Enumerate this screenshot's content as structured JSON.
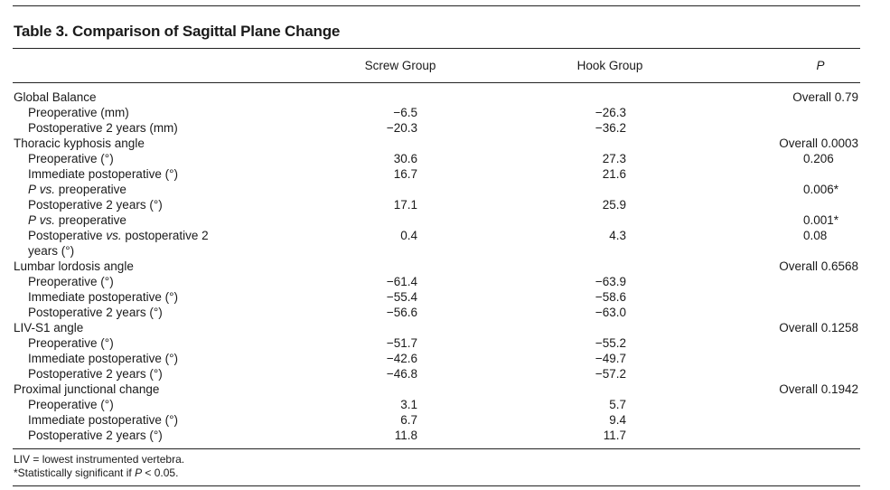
{
  "table": {
    "title": "Table 3.  Comparison of Sagittal Plane Change",
    "headers": {
      "screw": "Screw Group",
      "hook": "Hook Group",
      "p": "P"
    },
    "rows": [
      {
        "label": "Global Balance",
        "screw": "",
        "hook": "",
        "p": "Overall 0.79",
        "indent": false
      },
      {
        "label": "Preoperative (mm)",
        "screw": "−6.5",
        "hook": "−26.3",
        "p": "",
        "indent": true
      },
      {
        "label": "Postoperative 2 years (mm)",
        "screw": "−20.3",
        "hook": "−36.2",
        "p": "",
        "indent": true
      },
      {
        "label": "Thoracic kyphosis angle",
        "screw": "",
        "hook": "",
        "p": "Overall 0.0003",
        "indent": false
      },
      {
        "label": "Preoperative (°)",
        "screw": "30.6",
        "hook": "27.3",
        "p": "0.206",
        "indent": true
      },
      {
        "label": "Immediate postoperative (°)",
        "screw": "16.7",
        "hook": "21.6",
        "p": "",
        "indent": true
      },
      {
        "label": "P vs. preoperative",
        "screw": "",
        "hook": "",
        "p": "0.006*",
        "indent": true
      },
      {
        "label": "Postoperative 2 years (°)",
        "screw": "17.1",
        "hook": "25.9",
        "p": "",
        "indent": true
      },
      {
        "label": "P vs. preoperative",
        "screw": "",
        "hook": "",
        "p": "0.001*",
        "indent": true
      },
      {
        "label": "Postoperative vs. postoperative 2 years (°)",
        "screw": "0.4",
        "hook": "4.3",
        "p": "0.08",
        "indent": true,
        "wrap": true
      },
      {
        "label": "Lumbar lordosis angle",
        "screw": "",
        "hook": "",
        "p": "Overall 0.6568",
        "indent": false
      },
      {
        "label": "Preoperative (°)",
        "screw": "−61.4",
        "hook": "−63.9",
        "p": "",
        "indent": true
      },
      {
        "label": "Immediate postoperative (°)",
        "screw": "−55.4",
        "hook": "−58.6",
        "p": "",
        "indent": true
      },
      {
        "label": "Postoperative 2 years (°)",
        "screw": "−56.6",
        "hook": "−63.0",
        "p": "",
        "indent": true
      },
      {
        "label": "LIV-S1 angle",
        "screw": "",
        "hook": "",
        "p": "Overall 0.1258",
        "indent": false
      },
      {
        "label": "Preoperative (°)",
        "screw": "−51.7",
        "hook": "−55.2",
        "p": "",
        "indent": true
      },
      {
        "label": "Immediate postoperative (°)",
        "screw": "−42.6",
        "hook": "−49.7",
        "p": "",
        "indent": true
      },
      {
        "label": "Postoperative 2 years (°)",
        "screw": "−46.8",
        "hook": "−57.2",
        "p": "",
        "indent": true
      },
      {
        "label": "Proximal junctional change",
        "screw": "",
        "hook": "",
        "p": "Overall 0.1942",
        "indent": false
      },
      {
        "label": "Preoperative (°)",
        "screw": "3.1",
        "hook": "5.7",
        "p": "",
        "indent": true
      },
      {
        "label": "Immediate postoperative (°)",
        "screw": "6.7",
        "hook": "9.4",
        "p": "",
        "indent": true
      },
      {
        "label": "Postoperative 2 years (°)",
        "screw": "11.8",
        "hook": "11.7",
        "p": "",
        "indent": true
      }
    ]
  },
  "footnotes": {
    "liv": "LIV = lowest instrumented vertebra.",
    "significance": "*Statistically significant if P < 0.05."
  }
}
